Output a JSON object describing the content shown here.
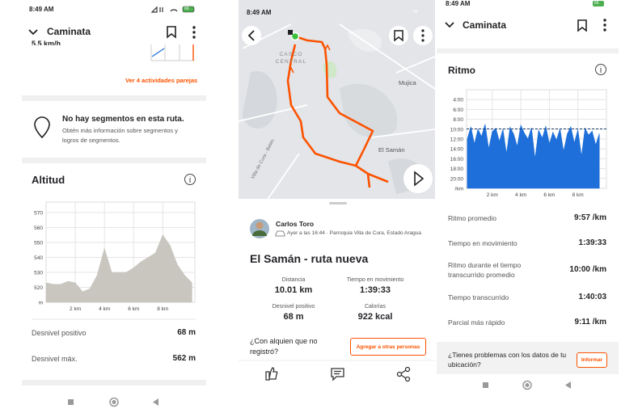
{
  "left": {
    "status_time": "8:49 AM",
    "battery": "66",
    "title": "Caminata",
    "speed_partial": "5.5 km/h",
    "similar_link": "Ver 4 actividades parejas",
    "segments_title": "No hay segmentos en esta ruta.",
    "segments_text": "Obtén más información sobre segmentos y logros de segmentos.",
    "altitude_title": "Altitud",
    "stats": [
      {
        "label": "Desnivel positivo",
        "value": "68 m"
      },
      {
        "label": "Desnivel máx.",
        "value": "562 m"
      }
    ]
  },
  "middle": {
    "status_time": "8:49 AM",
    "battery": "66",
    "map_labels": [
      "CASCO CENTRAL",
      "Mujica",
      "El Samán",
      "Villa de Cura - Belén"
    ],
    "athlete": "Carlos Toro",
    "meta": "Ayer a las 16:44 · Parroquia Villa de Cura, Estado Aragua",
    "title": "El Samán - ruta nueva",
    "stats": [
      {
        "label": "Distancia",
        "value": "10.01 km"
      },
      {
        "label": "Tiempo en movimiento",
        "value": "1:39:33"
      },
      {
        "label": "Desnivel positivo",
        "value": "68 m"
      },
      {
        "label": "Calorías",
        "value": "922 kcal"
      }
    ],
    "tag_prompt": "¿Con alquien que no registró?",
    "tag_button": "Agregar a otras personas"
  },
  "right": {
    "status_time": "8:49 AM",
    "battery": "66",
    "title": "Caminata",
    "pace_title": "Ritmo",
    "stats": [
      {
        "label": "Ritmo promedio",
        "value": "9:57 /km"
      },
      {
        "label": "Tiempo en movimiento",
        "value": "1:39:33"
      },
      {
        "label": "Ritmo durante el tiempo transcurrido promedio",
        "value": "10:00 /km"
      },
      {
        "label": "Tiempo transcurrido",
        "value": "1:40:03"
      },
      {
        "label": "Parcial más rápido",
        "value": "9:11 /km"
      }
    ],
    "problem_text": "¿Tienes problemas con los datos de tu ubicación?",
    "problem_button": "Informar"
  },
  "chart_data": [
    {
      "type": "area",
      "y_axis_label": "m",
      "color": "#c9c6bf",
      "x": [
        0,
        0.5,
        1,
        1.5,
        2,
        2.5,
        3,
        3.5,
        4,
        4.5,
        5,
        5.5,
        6,
        6.5,
        7,
        7.5,
        8,
        8.5,
        9,
        9.5,
        10
      ],
      "values": [
        523,
        522,
        522,
        524,
        523,
        517,
        519,
        528,
        546,
        530,
        530,
        530,
        533,
        537,
        540,
        543,
        555,
        548,
        535,
        528,
        523
      ],
      "xlim": [
        0,
        10.2
      ],
      "ylim": [
        510,
        577
      ],
      "xticks": [
        {
          "value": 2,
          "label": "2 km"
        },
        {
          "value": 4,
          "label": "4 km"
        },
        {
          "value": 6,
          "label": "6 km"
        },
        {
          "value": 8,
          "label": "8 km"
        }
      ],
      "yticks": [
        520,
        530,
        540,
        550,
        560,
        570
      ],
      "grid": true
    },
    {
      "type": "area",
      "y_axis_label": "/km",
      "color": "#1e6fd9",
      "average": 9.95,
      "x": [
        0.25,
        0.5,
        0.75,
        1,
        1.25,
        1.5,
        1.75,
        2,
        2.25,
        2.5,
        2.75,
        3,
        3.25,
        3.5,
        3.75,
        4,
        4.25,
        4.5,
        4.75,
        5,
        5.25,
        5.5,
        5.75,
        6,
        6.25,
        6.5,
        6.75,
        7,
        7.25,
        7.5,
        7.75,
        8,
        8.25,
        8.5,
        8.75,
        9,
        9.25,
        9.5
      ],
      "values": [
        12,
        9.5,
        13,
        10,
        11.5,
        9,
        14,
        10.5,
        9.8,
        12.5,
        10,
        15,
        9.6,
        11,
        13.5,
        9.2,
        10.8,
        12,
        9.7,
        16,
        10.2,
        11.8,
        9.4,
        13,
        10.6,
        12.2,
        9.9,
        14.5,
        11,
        9.5,
        12.8,
        10.1,
        15.5,
        9.8,
        11.2,
        10.4,
        13.2,
        10.9
      ],
      "xlim": [
        0.2,
        10
      ],
      "ylim": [
        22,
        2
      ],
      "xticks": [
        {
          "value": 2,
          "label": "2 km"
        },
        {
          "value": 4,
          "label": "4 km"
        },
        {
          "value": 6,
          "label": "6 km"
        },
        {
          "value": 8,
          "label": "8 km"
        }
      ],
      "yticks": [
        {
          "value": 4,
          "label": "4:00"
        },
        {
          "value": 6,
          "label": "6:00"
        },
        {
          "value": 8,
          "label": "8:00"
        },
        {
          "value": 10,
          "label": "10:00"
        },
        {
          "value": 12,
          "label": "12:00"
        },
        {
          "value": 14,
          "label": "14:00"
        },
        {
          "value": 16,
          "label": "16:00"
        },
        {
          "value": 18,
          "label": "18:00"
        },
        {
          "value": 20,
          "label": "20:00"
        }
      ],
      "grid": true
    }
  ]
}
